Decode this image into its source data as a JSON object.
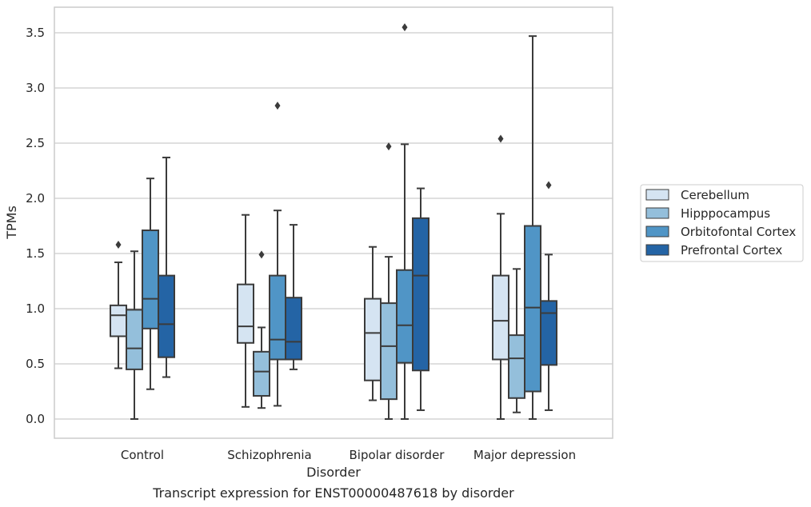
{
  "chart_data": {
    "type": "box",
    "caption": "Transcript expression for ENST00000487618 by disorder",
    "xlabel": "Disorder",
    "ylabel": "TPMs",
    "ylim": [
      -0.17,
      3.68
    ],
    "yticks": [
      "0.0",
      "0.5",
      "1.0",
      "1.5",
      "2.0",
      "2.5",
      "3.0",
      "3.5"
    ],
    "grid": "horizontal",
    "legend_position": "right",
    "categories": [
      "Control",
      "Schizophrenia",
      "Bipolar disorder",
      "Major depression"
    ],
    "series": [
      {
        "name": "Cerebellum",
        "color": "#d5e4f2",
        "boxes": [
          {
            "min": 0.46,
            "q1": 0.75,
            "median": 0.94,
            "q3": 1.03,
            "max": 1.42,
            "outliers": [
              1.58
            ]
          },
          {
            "min": 0.11,
            "q1": 0.69,
            "median": 0.84,
            "q3": 1.22,
            "max": 1.85,
            "outliers": []
          },
          {
            "min": 0.17,
            "q1": 0.35,
            "median": 0.78,
            "q3": 1.09,
            "max": 1.56,
            "outliers": []
          },
          {
            "min": 0.0,
            "q1": 0.54,
            "median": 0.89,
            "q3": 1.3,
            "max": 1.86,
            "outliers": [
              2.54
            ]
          }
        ]
      },
      {
        "name": "Hipppocampus",
        "color": "#94bfdb",
        "boxes": [
          {
            "min": 0.0,
            "q1": 0.45,
            "median": 0.64,
            "q3": 0.99,
            "max": 1.52,
            "outliers": []
          },
          {
            "min": 0.1,
            "q1": 0.21,
            "median": 0.43,
            "q3": 0.61,
            "max": 0.83,
            "outliers": [
              1.49
            ]
          },
          {
            "min": 0.0,
            "q1": 0.18,
            "median": 0.66,
            "q3": 1.05,
            "max": 1.47,
            "outliers": [
              2.47
            ]
          },
          {
            "min": 0.06,
            "q1": 0.19,
            "median": 0.55,
            "q3": 0.76,
            "max": 1.36,
            "outliers": []
          }
        ]
      },
      {
        "name": "Orbitofontal Cortex",
        "color": "#5095c6",
        "boxes": [
          {
            "min": 0.27,
            "q1": 0.82,
            "median": 1.09,
            "q3": 1.71,
            "max": 2.18,
            "outliers": []
          },
          {
            "min": 0.12,
            "q1": 0.54,
            "median": 0.72,
            "q3": 1.3,
            "max": 1.89,
            "outliers": [
              2.84
            ]
          },
          {
            "min": 0.0,
            "q1": 0.51,
            "median": 0.85,
            "q3": 1.35,
            "max": 2.49,
            "outliers": [
              3.55
            ]
          },
          {
            "min": 0.0,
            "q1": 0.25,
            "median": 1.01,
            "q3": 1.75,
            "max": 3.47,
            "outliers": []
          }
        ]
      },
      {
        "name": "Prefrontal Cortex",
        "color": "#2464a5",
        "boxes": [
          {
            "min": 0.38,
            "q1": 0.56,
            "median": 0.86,
            "q3": 1.3,
            "max": 2.37,
            "outliers": []
          },
          {
            "min": 0.45,
            "q1": 0.54,
            "median": 0.7,
            "q3": 1.1,
            "max": 1.76,
            "outliers": []
          },
          {
            "min": 0.08,
            "q1": 0.44,
            "median": 1.3,
            "q3": 1.82,
            "max": 2.09,
            "outliers": []
          },
          {
            "min": 0.08,
            "q1": 0.49,
            "median": 0.96,
            "q3": 1.07,
            "max": 1.49,
            "outliers": [
              2.12
            ]
          }
        ]
      }
    ]
  }
}
